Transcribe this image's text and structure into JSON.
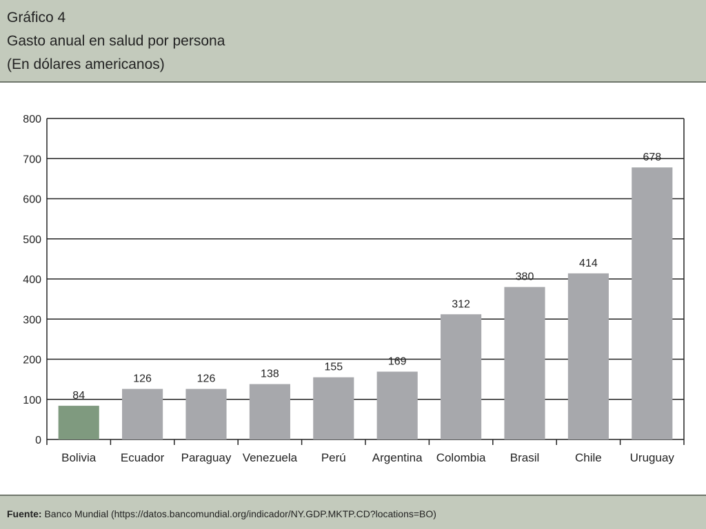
{
  "header": {
    "figure_label": "Gráfico 4",
    "title": "Gasto anual en salud por persona",
    "subtitle": "(En dólares americanos)"
  },
  "footer": {
    "source_label": "Fuente:",
    "source_text": "Banco Mundial (https://datos.bancomundial.org/indicador/NY.GDP.MKTP.CD?locations=BO)"
  },
  "colors": {
    "highlight_bar": "#7f9a7f",
    "bar": "#a7a8ac",
    "header_bg": "#c3cabc"
  },
  "chart_data": {
    "type": "bar",
    "title": "Gasto anual en salud por persona",
    "subtitle": "(En dólares americanos)",
    "categories": [
      "Bolivia",
      "Ecuador",
      "Paraguay",
      "Venezuela",
      "Perú",
      "Argentina",
      "Colombia",
      "Brasil",
      "Chile",
      "Uruguay"
    ],
    "values": [
      84,
      126,
      126,
      138,
      155,
      169,
      312,
      380,
      414,
      678
    ],
    "data_labels": [
      "84",
      "126",
      "126",
      "138",
      "155",
      "169",
      "312",
      "380",
      "414",
      "678"
    ],
    "highlight": "Bolivia",
    "xlabel": "",
    "ylabel": "",
    "ylim": [
      0,
      800
    ],
    "yticks": [
      0,
      100,
      200,
      300,
      400,
      500,
      600,
      700,
      800
    ],
    "grid": true,
    "legend": "none"
  }
}
